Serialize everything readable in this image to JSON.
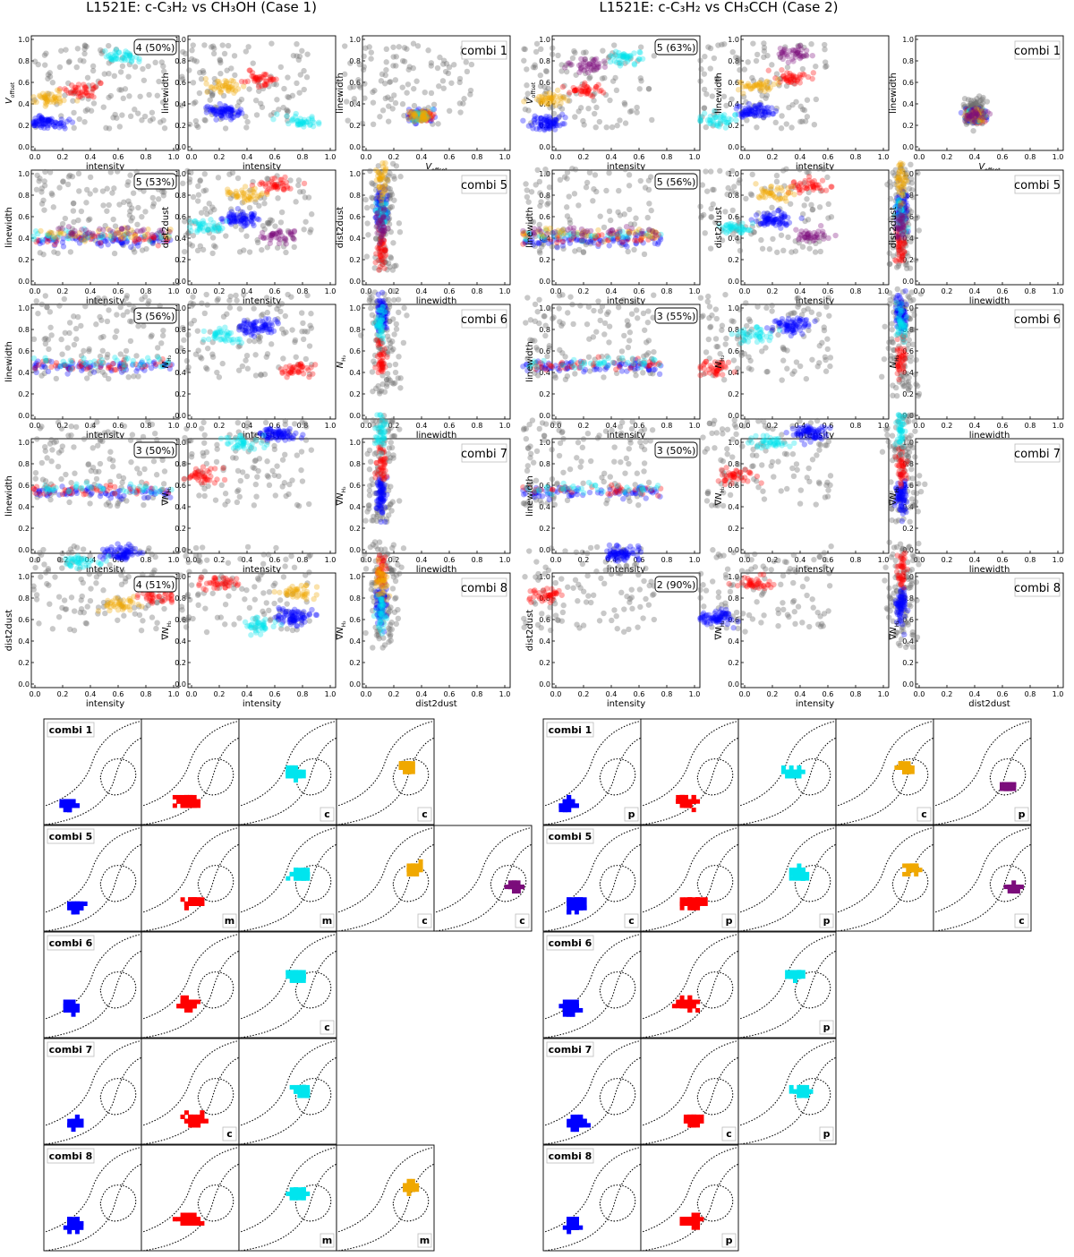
{
  "case1": {
    "title": "L1521E:  c-C₃H₂ vs CH₃OH  (Case 1)",
    "rows": [
      {
        "label": "4 (50%)",
        "combi": "combi 1",
        "panels": [
          {
            "xlabel": "intensity",
            "ylabel": "V_offset"
          },
          {
            "xlabel": "intensity",
            "ylabel": "linewidth"
          },
          {
            "xlabel": "V_offset",
            "ylabel": "linewidth"
          }
        ]
      },
      {
        "label": "5 (53%)",
        "combi": "combi 5",
        "panels": [
          {
            "xlabel": "intensity",
            "ylabel": "linewidth"
          },
          {
            "xlabel": "intensity",
            "ylabel": "dist2dust"
          },
          {
            "xlabel": "linewidth",
            "ylabel": "dist2dust"
          }
        ]
      },
      {
        "label": "3 (56%)",
        "combi": "combi 6",
        "panels": [
          {
            "xlabel": "intensity",
            "ylabel": "linewidth"
          },
          {
            "xlabel": "intensity",
            "ylabel": "N_H2"
          },
          {
            "xlabel": "linewidth",
            "ylabel": "N_H2"
          }
        ]
      },
      {
        "label": "3 (50%)",
        "combi": "combi 7",
        "panels": [
          {
            "xlabel": "intensity",
            "ylabel": "linewidth"
          },
          {
            "xlabel": "intensity",
            "ylabel": "gradN_H2"
          },
          {
            "xlabel": "linewidth",
            "ylabel": "gradN_H2"
          }
        ]
      },
      {
        "label": "4 (51%)",
        "combi": "combi 8",
        "panels": [
          {
            "xlabel": "intensity",
            "ylabel": "dist2dust"
          },
          {
            "xlabel": "intensity",
            "ylabel": "gradN_H2"
          },
          {
            "xlabel": "dist2dust",
            "ylabel": "gradN_H2"
          }
        ]
      }
    ],
    "maps": [
      {
        "combi": "combi 1",
        "clusters": [
          "blue",
          "red",
          "cyan",
          "orange"
        ],
        "tags": [
          "",
          "",
          "c",
          "c"
        ]
      },
      {
        "combi": "combi 5",
        "clusters": [
          "blue",
          "red",
          "cyan",
          "orange",
          "purple"
        ],
        "tags": [
          "",
          "m",
          "m",
          "c",
          "c"
        ]
      },
      {
        "combi": "combi 6",
        "clusters": [
          "blue",
          "red",
          "cyan"
        ],
        "tags": [
          "",
          "",
          "c"
        ]
      },
      {
        "combi": "combi 7",
        "clusters": [
          "blue",
          "red",
          "cyan"
        ],
        "tags": [
          "",
          "c",
          ""
        ]
      },
      {
        "combi": "combi 8",
        "clusters": [
          "blue",
          "red",
          "cyan",
          "orange"
        ],
        "tags": [
          "",
          "",
          "m",
          "m"
        ]
      }
    ]
  },
  "case2": {
    "title": "L1521E:  c-C₃H₂ vs CH₃CCH  (Case 2)",
    "rows": [
      {
        "label": "5 (63%)",
        "combi": "combi 1",
        "panels": [
          {
            "xlabel": "intensity",
            "ylabel": "V_offset"
          },
          {
            "xlabel": "intensity",
            "ylabel": "linewidth"
          },
          {
            "xlabel": "V_offset",
            "ylabel": "linewidth"
          }
        ]
      },
      {
        "label": "5 (56%)",
        "combi": "combi 5",
        "panels": [
          {
            "xlabel": "intensity",
            "ylabel": "linewidth"
          },
          {
            "xlabel": "intensity",
            "ylabel": "dist2dust"
          },
          {
            "xlabel": "linewidth",
            "ylabel": "dist2dust"
          }
        ]
      },
      {
        "label": "3 (55%)",
        "combi": "combi 6",
        "panels": [
          {
            "xlabel": "intensity",
            "ylabel": "linewidth"
          },
          {
            "xlabel": "intensity",
            "ylabel": "N_H2"
          },
          {
            "xlabel": "linewidth",
            "ylabel": "N_H2"
          }
        ]
      },
      {
        "label": "3 (50%)",
        "combi": "combi 7",
        "panels": [
          {
            "xlabel": "intensity",
            "ylabel": "linewidth"
          },
          {
            "xlabel": "intensity",
            "ylabel": "gradN_H2"
          },
          {
            "xlabel": "linewidth",
            "ylabel": "gradN_H2"
          }
        ]
      },
      {
        "label": "2 (90%)",
        "combi": "combi 8",
        "panels": [
          {
            "xlabel": "intensity",
            "ylabel": "dist2dust"
          },
          {
            "xlabel": "intensity",
            "ylabel": "gradN_H2"
          },
          {
            "xlabel": "dist2dust",
            "ylabel": "gradN_H2"
          }
        ]
      }
    ],
    "maps": [
      {
        "combi": "combi 1",
        "clusters": [
          "blue",
          "red",
          "cyan",
          "orange",
          "purple"
        ],
        "tags": [
          "p",
          "",
          "",
          "c",
          "p"
        ]
      },
      {
        "combi": "combi 5",
        "clusters": [
          "blue",
          "red",
          "cyan",
          "orange",
          "purple"
        ],
        "tags": [
          "c",
          "p",
          "p",
          "",
          "c"
        ]
      },
      {
        "combi": "combi 6",
        "clusters": [
          "blue",
          "red",
          "cyan"
        ],
        "tags": [
          "",
          "",
          "p"
        ]
      },
      {
        "combi": "combi 7",
        "clusters": [
          "blue",
          "red",
          "cyan"
        ],
        "tags": [
          "",
          "c",
          "p"
        ]
      },
      {
        "combi": "combi 8",
        "clusters": [
          "blue",
          "red"
        ],
        "tags": [
          "",
          "p"
        ]
      }
    ]
  },
  "axis": {
    "ticks": [
      "0.0",
      "0.2",
      "0.4",
      "0.6",
      "0.8",
      "1.0"
    ],
    "lim": [
      0,
      1
    ]
  },
  "colors": {
    "blue": "#0000ff",
    "red": "#ff0000",
    "cyan": "#00e5ee",
    "orange": "#f0a800",
    "purple": "#7b0c7b",
    "noise": "#6e6e6e"
  },
  "chart_data": {
    "type": "scatter",
    "note_ranges": "all scatter axes run from 0 to 1 (normalised)",
    "series_names": [
      "blue",
      "red",
      "cyan",
      "orange",
      "purple",
      "noise"
    ]
  }
}
